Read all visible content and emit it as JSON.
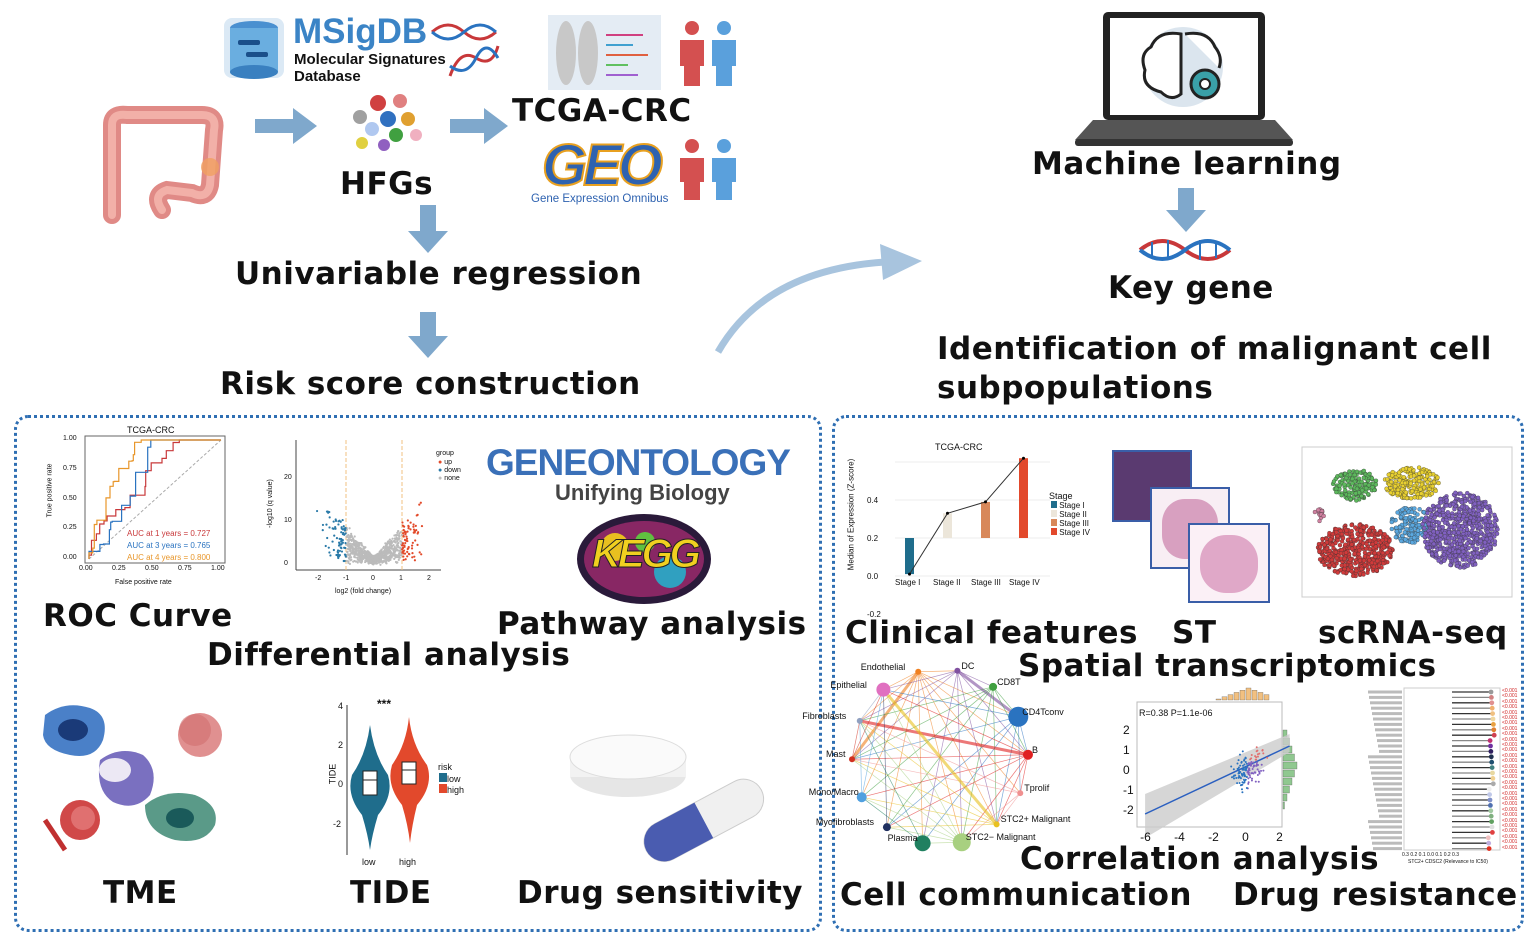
{
  "top": {
    "msigdb": {
      "title": "MSigDB",
      "subtitle_line1": "Molecular Signatures",
      "subtitle_line2": "Database"
    },
    "hfgs": "HFGs",
    "tcga": "TCGA-CRC",
    "geo": {
      "logo": "GEO",
      "subtitle": "Gene Expression Omnibus"
    },
    "univariable": "Univariable regression",
    "risk_score": "Risk score construction",
    "machine_learning": "Machine learning",
    "key_gene": "Key gene",
    "identification_line1": "Identification of malignant cell",
    "identification_line2": "subpopulations"
  },
  "left_panel": {
    "roc": {
      "title": "TCGA-CRC",
      "xlabel": "False positive rate",
      "ylabel": "True positive rate",
      "ticks": [
        "0.00",
        "0.25",
        "0.50",
        "0.75",
        "1.00"
      ],
      "auc": [
        {
          "label": "AUC at 1 years = 0.727",
          "color": "#c8383a"
        },
        {
          "label": "AUC at 3 years = 0.765",
          "color": "#2a73c0"
        },
        {
          "label": "AUC at 4 years = 0.800",
          "color": "#e8962a"
        }
      ],
      "caption": "ROC Curve"
    },
    "volcano": {
      "xlabel": "log2 (fold change)",
      "ylabel": "-log10 (q value)",
      "xticks": [
        "-2",
        "-1",
        "0",
        "1",
        "2"
      ],
      "yticks": [
        "0",
        "10",
        "20"
      ],
      "legend_title": "group",
      "legend": [
        "up",
        "down",
        "none"
      ],
      "caption": "Differential analysis"
    },
    "pathway": {
      "go_title": "GENEONTOLOGY",
      "go_sub": "Unifying Biology",
      "kegg": "KEGG",
      "caption": "Pathway analysis"
    },
    "tme": {
      "caption": "TME"
    },
    "tide": {
      "ylabel": "TIDE",
      "yticks": [
        "4",
        "2",
        "0",
        "-2"
      ],
      "sig": "***",
      "xticks": [
        "low",
        "high"
      ],
      "legend_title": "risk",
      "legend": [
        "low",
        "high"
      ],
      "caption": "TIDE"
    },
    "drug": {
      "caption": "Drug sensitivity"
    }
  },
  "right_panel": {
    "clinical": {
      "title": "TCGA-CRC",
      "ylabel": "Median of Expression (Z-score)",
      "yticks": [
        "0.4",
        "0.2",
        "0.0",
        "-0.2"
      ],
      "categories": [
        "Stage I",
        "Stage II",
        "Stage III",
        "Stage IV"
      ],
      "values": [
        -0.19,
        0.13,
        0.19,
        0.42
      ],
      "colors": [
        "#1f6d8c",
        "#ece6da",
        "#d8885a",
        "#e2492c"
      ],
      "legend_title": "Stage",
      "caption": "Clinical features"
    },
    "st": {
      "caption": "ST",
      "caption2": "Spatial transcriptomics"
    },
    "scrna": {
      "caption": "scRNA-seq"
    },
    "cellcomm": {
      "nodes": [
        "Endothelial",
        "DC",
        "CD8T",
        "CD4Tconv",
        "B",
        "Tprolif",
        "STC2+ Malignant",
        "STC2− Malignant",
        "Plasma",
        "Myofibroblasts",
        "Mono/Macro",
        "Mast",
        "Fibroblasts",
        "Epithelial"
      ],
      "caption": "Cell communication"
    },
    "correlation": {
      "stat": "R=0.38 P=1.1e-06",
      "xticks": [
        "-6",
        "-4",
        "-2",
        "0",
        "2"
      ],
      "yticks": [
        "2",
        "1",
        "0",
        "-1",
        "-2"
      ],
      "caption": "Correlation analysis"
    },
    "resistance": {
      "pvalue": "<0.001",
      "xticks": "0.3 0.2 0.1 0.0 0.1 0.2 0.3",
      "xlabel": "STC2+ CDSC2 (Relevance to IC50)",
      "caption": "Drug resistance"
    }
  }
}
